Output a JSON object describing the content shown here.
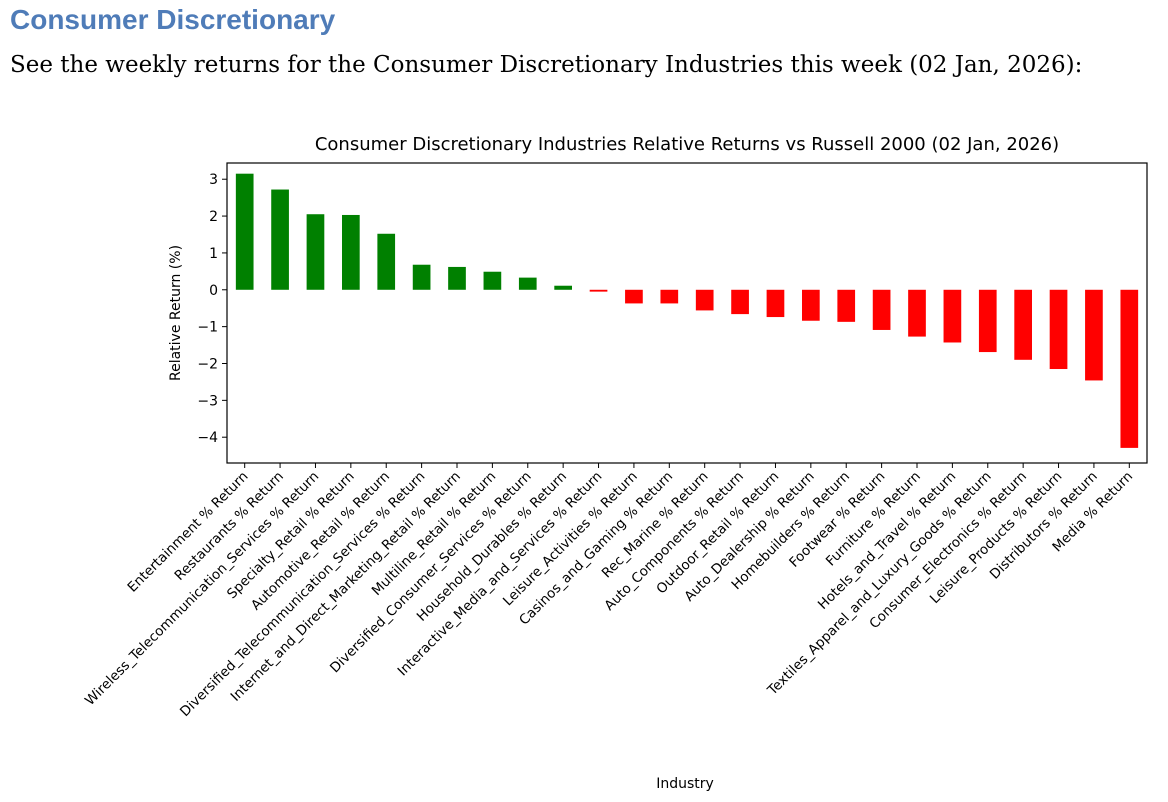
{
  "page": {
    "heading": "Consumer Discretionary",
    "intro": "See the weekly returns for the Consumer Discretionary Industries this week (02 Jan, 2026):"
  },
  "chart_data": {
    "type": "bar",
    "title": "Consumer Discretionary Industries Relative Returns vs Russell 2000 (02 Jan, 2026)",
    "xlabel": "Industry",
    "ylabel": "Relative Return (%)",
    "ylim": [
      -4.7,
      3.44
    ],
    "yticks": [
      3,
      2,
      1,
      0,
      -1,
      -2,
      -3,
      -4
    ],
    "grid": false,
    "positive_color": "#008000",
    "negative_color": "#ff0000",
    "categories": [
      "Entertainment % Return",
      "Restaurants % Return",
      "Wireless_Telecommunication_Services % Return",
      "Specialty_Retail % Return",
      "Automotive_Retail % Return",
      "Diversified_Telecommunication_Services % Return",
      "Internet_and_Direct_Marketing_Retail % Return",
      "Multiline_Retail % Return",
      "Diversified_Consumer_Services % Return",
      "Household_Durables % Return",
      "Interactive_Media_and_Services % Return",
      "Leisure_Activities % Return",
      "Casinos_and_Gaming % Return",
      "Rec_Marine % Return",
      "Auto_Components % Return",
      "Outdoor_Retail % Return",
      "Auto_Dealership % Return",
      "Homebuilders % Return",
      "Footwear % Return",
      "Furniture % Return",
      "Hotels_and_Travel % Return",
      "Textiles_Apparel_and_Luxury_Goods % Return",
      "Consumer_Electronics % Return",
      "Leisure_Products % Return",
      "Distributors % Return",
      "Media % Return"
    ],
    "values": [
      3.15,
      2.72,
      2.05,
      2.03,
      1.52,
      0.68,
      0.62,
      0.49,
      0.33,
      0.11,
      -0.05,
      -0.37,
      -0.37,
      -0.56,
      -0.66,
      -0.74,
      -0.84,
      -0.87,
      -1.09,
      -1.27,
      -1.43,
      -1.69,
      -1.9,
      -2.15,
      -2.46,
      -4.29
    ]
  }
}
